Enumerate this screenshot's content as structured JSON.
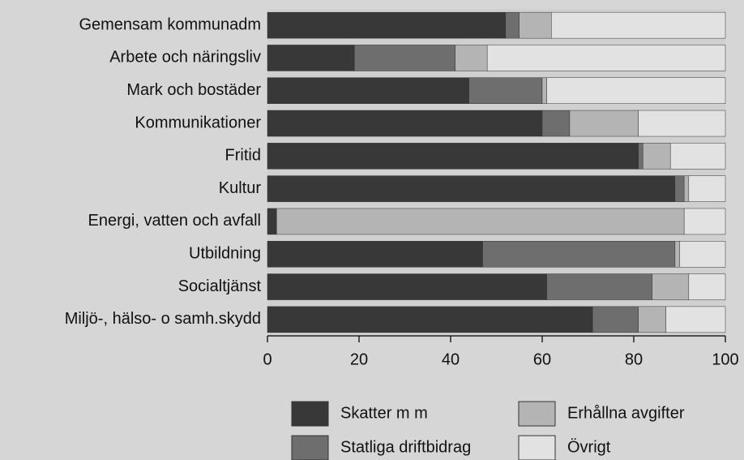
{
  "chart_data": {
    "type": "stacked_barh",
    "categories": [
      "Gemensam kommunadm",
      "Arbete och näringsliv",
      "Mark och bostäder",
      "Kommunikationer",
      "Fritid",
      "Kultur",
      "Energi, vatten och avfall",
      "Utbildning",
      "Socialtjänst",
      "Miljö-, hälso- o samh.skydd"
    ],
    "series": [
      {
        "name": "Skatter m m",
        "color": "#383838",
        "values": [
          52,
          19,
          44,
          60,
          81,
          89,
          2,
          47,
          61,
          71
        ]
      },
      {
        "name": "Statliga driftbidrag",
        "color": "#6e6e6e",
        "values": [
          3,
          22,
          16,
          6,
          1,
          2,
          0,
          42,
          23,
          10
        ]
      },
      {
        "name": "Erhållna avgifter",
        "color": "#b4b4b4",
        "values": [
          7,
          7,
          1,
          15,
          6,
          1,
          89,
          1,
          8,
          6
        ]
      },
      {
        "name": "Övrigt",
        "color": "#e2e2e2",
        "values": [
          38,
          52,
          39,
          19,
          12,
          8,
          9,
          10,
          8,
          13
        ]
      }
    ],
    "xlim": [
      0,
      100
    ],
    "xticks": [
      0,
      20,
      40,
      60,
      80,
      100
    ]
  }
}
